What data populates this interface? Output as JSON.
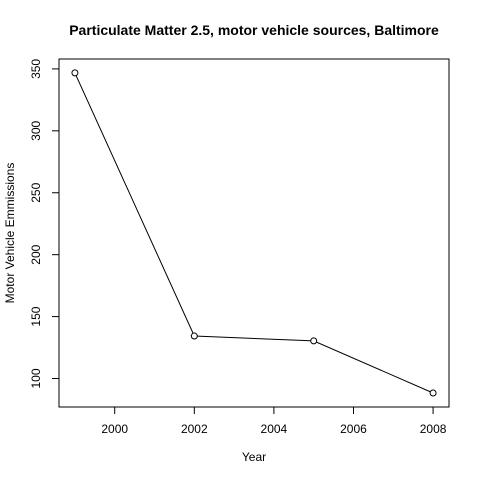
{
  "chart_data": {
    "type": "line",
    "title": "Particulate Matter 2.5, motor vehicle sources, Baltimore",
    "xlabel": "Year",
    "ylabel": "Motor Vehicle Emmissions",
    "x": [
      1999,
      2002,
      2005,
      2008
    ],
    "y": [
      346.8,
      134.3,
      130.4,
      88.3
    ],
    "xlim": [
      1998.6,
      2008.4
    ],
    "ylim": [
      77,
      358
    ],
    "xticks": [
      2000,
      2002,
      2004,
      2006,
      2008
    ],
    "yticks": [
      100,
      150,
      200,
      250,
      300,
      350
    ],
    "markers": "open-circle",
    "grid": false,
    "line_color": "#000000"
  }
}
